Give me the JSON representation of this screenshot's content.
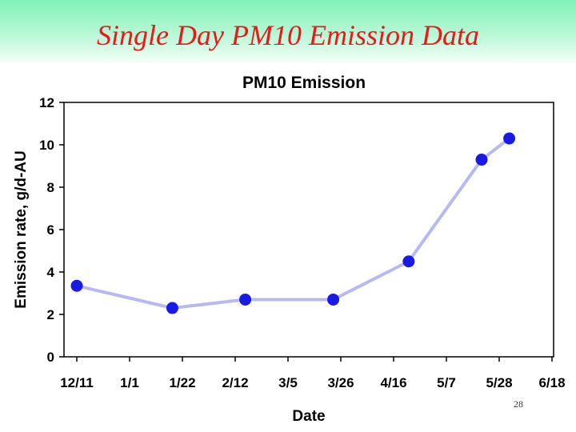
{
  "slide": {
    "title": "Single Day PM10 Emission Data",
    "page_number": "28"
  },
  "colors": {
    "title": "#e81919",
    "header_top": "#7ff3b8",
    "marker": "#1a1ae6",
    "line": "#b8b8f2"
  },
  "chart_data": {
    "type": "line",
    "title": "PM10 Emission",
    "xlabel": "Date",
    "ylabel": "Emission rate, g/d-AU",
    "x_tick_labels": [
      "12/11",
      "1/1",
      "1/22",
      "2/12",
      "3/5",
      "3/26",
      "4/16",
      "5/7",
      "5/28",
      "6/18"
    ],
    "y_ticks": [
      0,
      2,
      4,
      6,
      8,
      10,
      12
    ],
    "ylim": [
      0,
      12
    ],
    "grid": false,
    "series": [
      {
        "x": [
          "12/11",
          "1/18",
          "2/16",
          "3/23",
          "4/22",
          "5/21",
          "6/1"
        ],
        "y": [
          3.35,
          2.3,
          2.7,
          2.7,
          4.5,
          9.3,
          10.3
        ]
      }
    ]
  }
}
